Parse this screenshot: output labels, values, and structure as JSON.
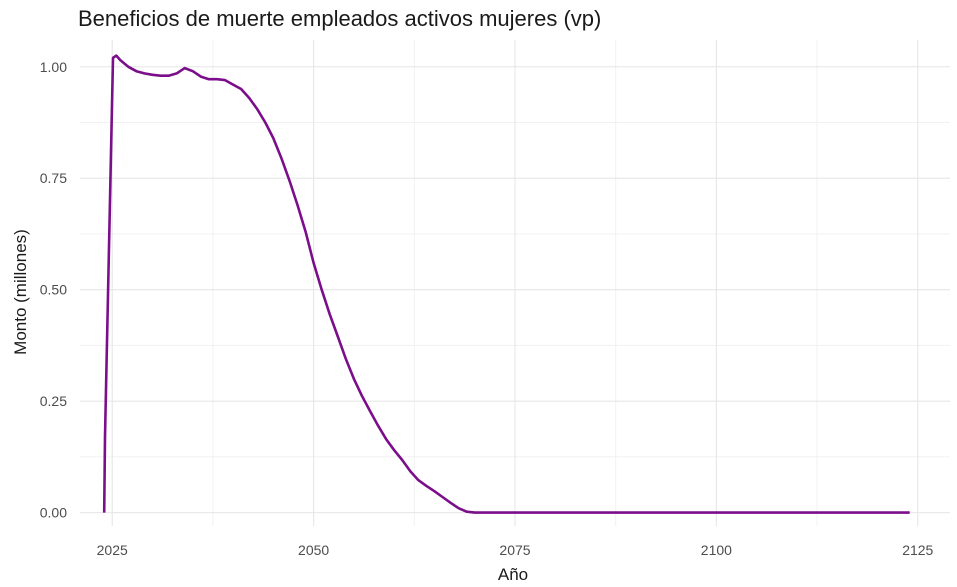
{
  "chart_data": {
    "type": "line",
    "title": "Beneficios de muerte empleados activos mujeres (vp)",
    "xlabel": "Año",
    "ylabel": "Monto (millones)",
    "xlim": [
      2021,
      2129
    ],
    "ylim": [
      -0.03,
      1.06
    ],
    "x_ticks": [
      2025,
      2050,
      2075,
      2100,
      2125
    ],
    "x_tick_labels": [
      "2025",
      "2050",
      "2075",
      "2100",
      "2125"
    ],
    "y_ticks": [
      0,
      0.25,
      0.5,
      0.75,
      1.0
    ],
    "y_tick_labels": [
      "0.00",
      "0.25",
      "0.50",
      "0.75",
      "1.00"
    ],
    "grid": true,
    "line_color": "#7B0E8A",
    "series": [
      {
        "points": [
          [
            2024.0,
            0.0
          ],
          [
            2024.1,
            0.17
          ],
          [
            2024.3,
            0.34
          ],
          [
            2024.5,
            0.51
          ],
          [
            2024.7,
            0.68
          ],
          [
            2024.9,
            0.85
          ],
          [
            2025.1,
            1.02
          ],
          [
            2025.5,
            1.025
          ],
          [
            2026,
            1.015
          ],
          [
            2027,
            1.0
          ],
          [
            2028,
            0.99
          ],
          [
            2029,
            0.985
          ],
          [
            2030,
            0.982
          ],
          [
            2031,
            0.98
          ],
          [
            2032,
            0.98
          ],
          [
            2033,
            0.985
          ],
          [
            2034,
            0.997
          ],
          [
            2035,
            0.99
          ],
          [
            2036,
            0.978
          ],
          [
            2037,
            0.972
          ],
          [
            2038,
            0.972
          ],
          [
            2039,
            0.97
          ],
          [
            2040,
            0.96
          ],
          [
            2041,
            0.95
          ],
          [
            2042,
            0.93
          ],
          [
            2043,
            0.905
          ],
          [
            2044,
            0.875
          ],
          [
            2045,
            0.84
          ],
          [
            2046,
            0.795
          ],
          [
            2047,
            0.745
          ],
          [
            2048,
            0.69
          ],
          [
            2049,
            0.63
          ],
          [
            2050,
            0.56
          ],
          [
            2051,
            0.5
          ],
          [
            2052,
            0.445
          ],
          [
            2053,
            0.395
          ],
          [
            2054,
            0.345
          ],
          [
            2055,
            0.3
          ],
          [
            2056,
            0.262
          ],
          [
            2057,
            0.228
          ],
          [
            2058,
            0.195
          ],
          [
            2059,
            0.165
          ],
          [
            2060,
            0.14
          ],
          [
            2061,
            0.118
          ],
          [
            2062,
            0.093
          ],
          [
            2063,
            0.073
          ],
          [
            2064,
            0.06
          ],
          [
            2065,
            0.048
          ],
          [
            2066,
            0.035
          ],
          [
            2067,
            0.022
          ],
          [
            2068,
            0.01
          ],
          [
            2069,
            0.002
          ],
          [
            2070,
            0.0
          ],
          [
            2080,
            0.0
          ],
          [
            2100,
            0.0
          ],
          [
            2124,
            0.0
          ]
        ]
      }
    ]
  }
}
